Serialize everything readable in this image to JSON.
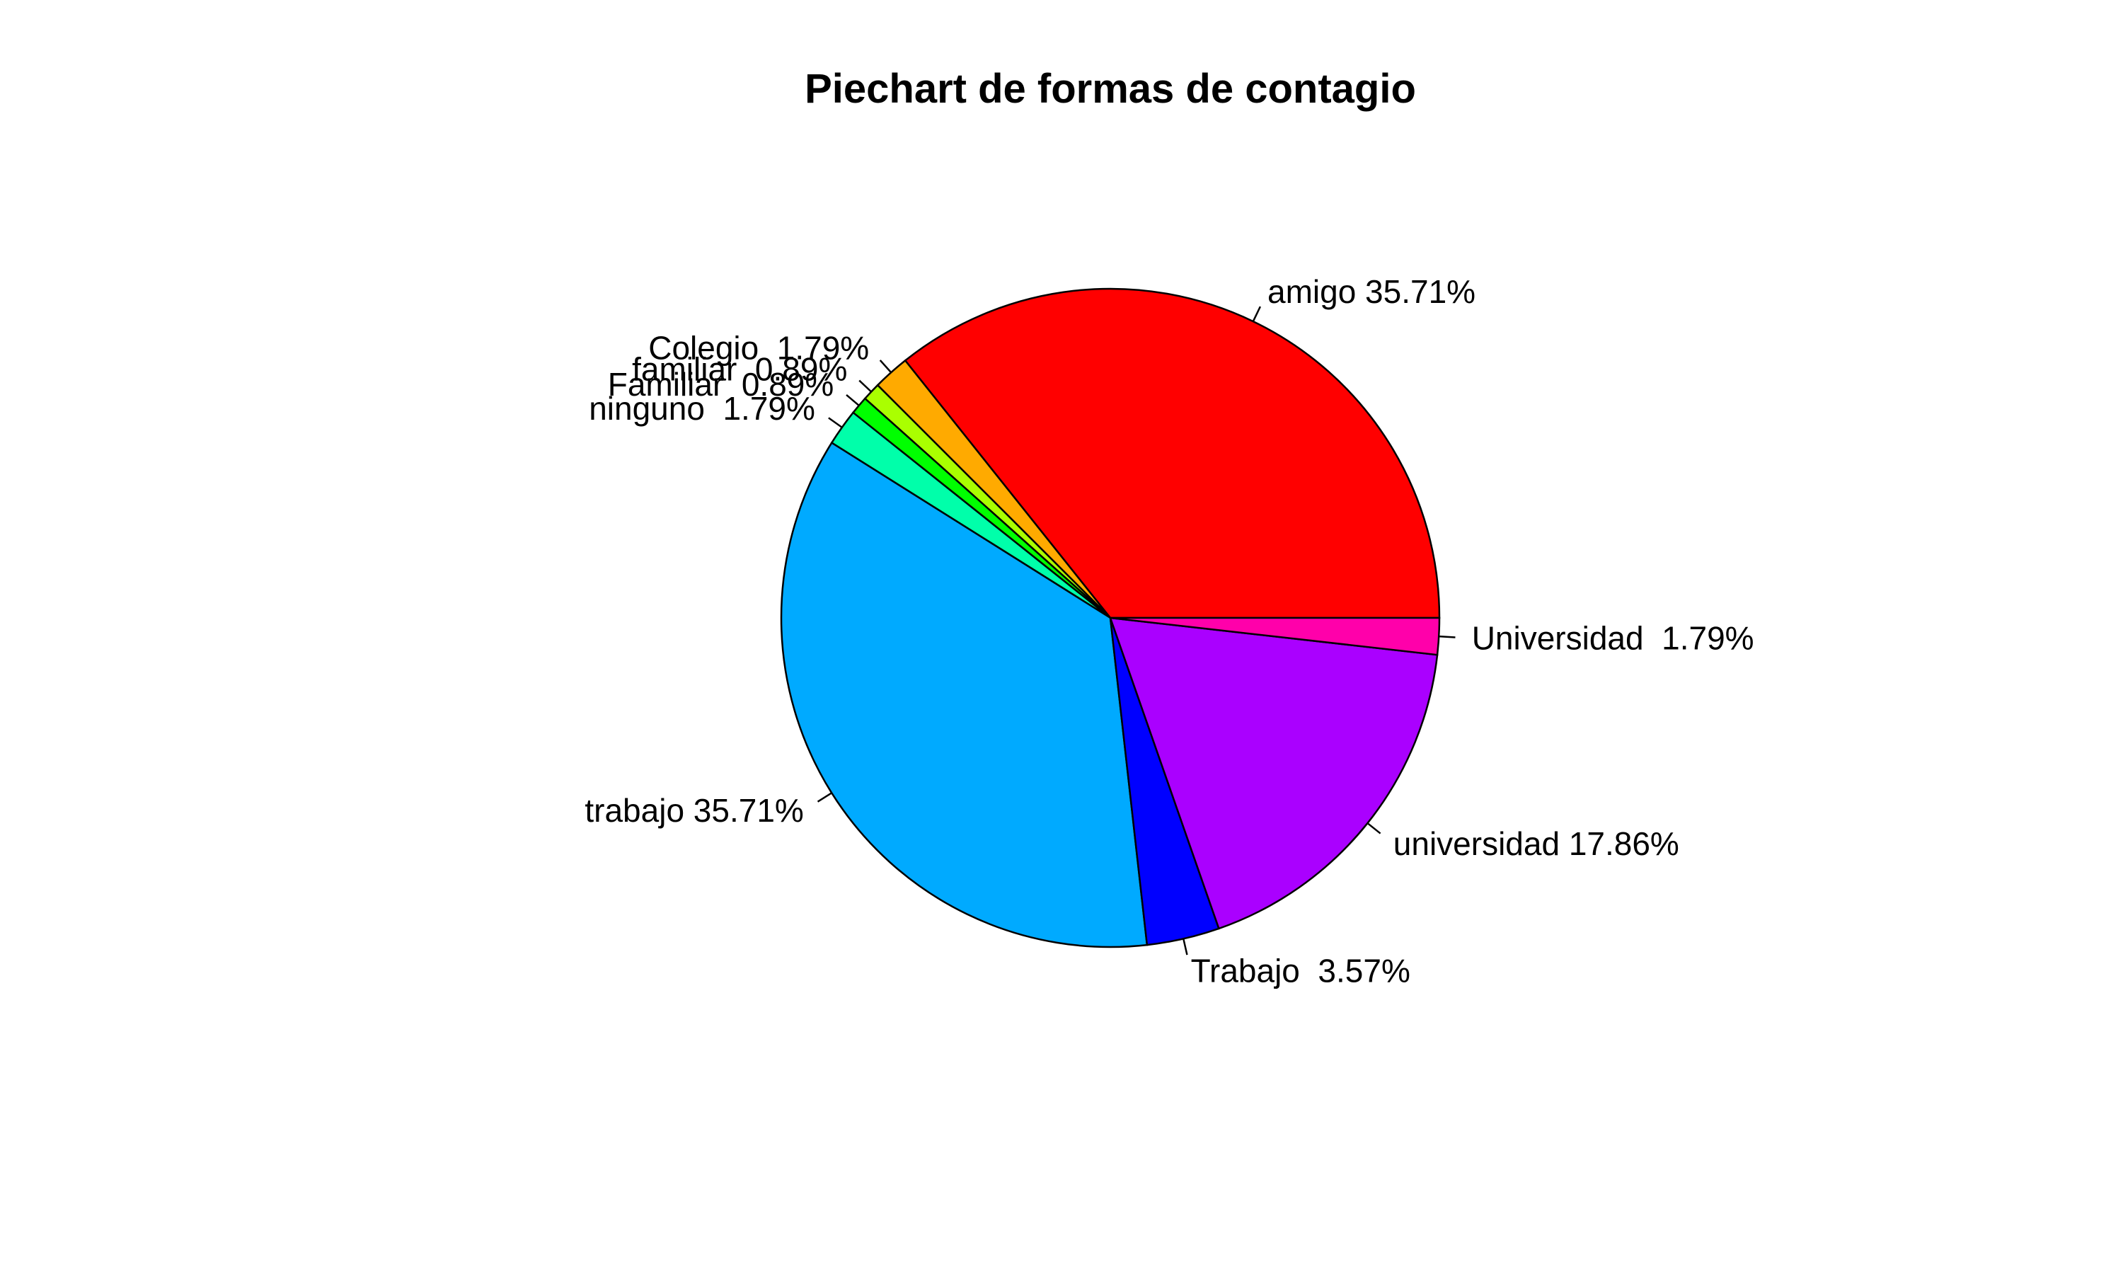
{
  "chart_data": {
    "type": "pie",
    "title": "Piechart de formas de contagio",
    "start_angle_deg": 0,
    "direction": "counterclockwise",
    "slices": [
      {
        "label": "amigo 35.71%",
        "value": 35.71,
        "color": "#FF0000"
      },
      {
        "label": "Colegio  1.79%",
        "value": 1.79,
        "color": "#FFAA00"
      },
      {
        "label": "familiar  0.89%",
        "value": 0.89,
        "color": "#AAFF00"
      },
      {
        "label": "Familiar  0.89%",
        "value": 0.89,
        "color": "#00FF00"
      },
      {
        "label": "ninguno  1.79%",
        "value": 1.79,
        "color": "#00FFAA"
      },
      {
        "label": "trabajo 35.71%",
        "value": 35.71,
        "color": "#00AAFF"
      },
      {
        "label": "Trabajo  3.57%",
        "value": 3.57,
        "color": "#0000FF"
      },
      {
        "label": "universidad 17.86%",
        "value": 17.86,
        "color": "#AA00FF"
      },
      {
        "label": "Universidad  1.79%",
        "value": 1.79,
        "color": "#FF00AA"
      }
    ]
  }
}
